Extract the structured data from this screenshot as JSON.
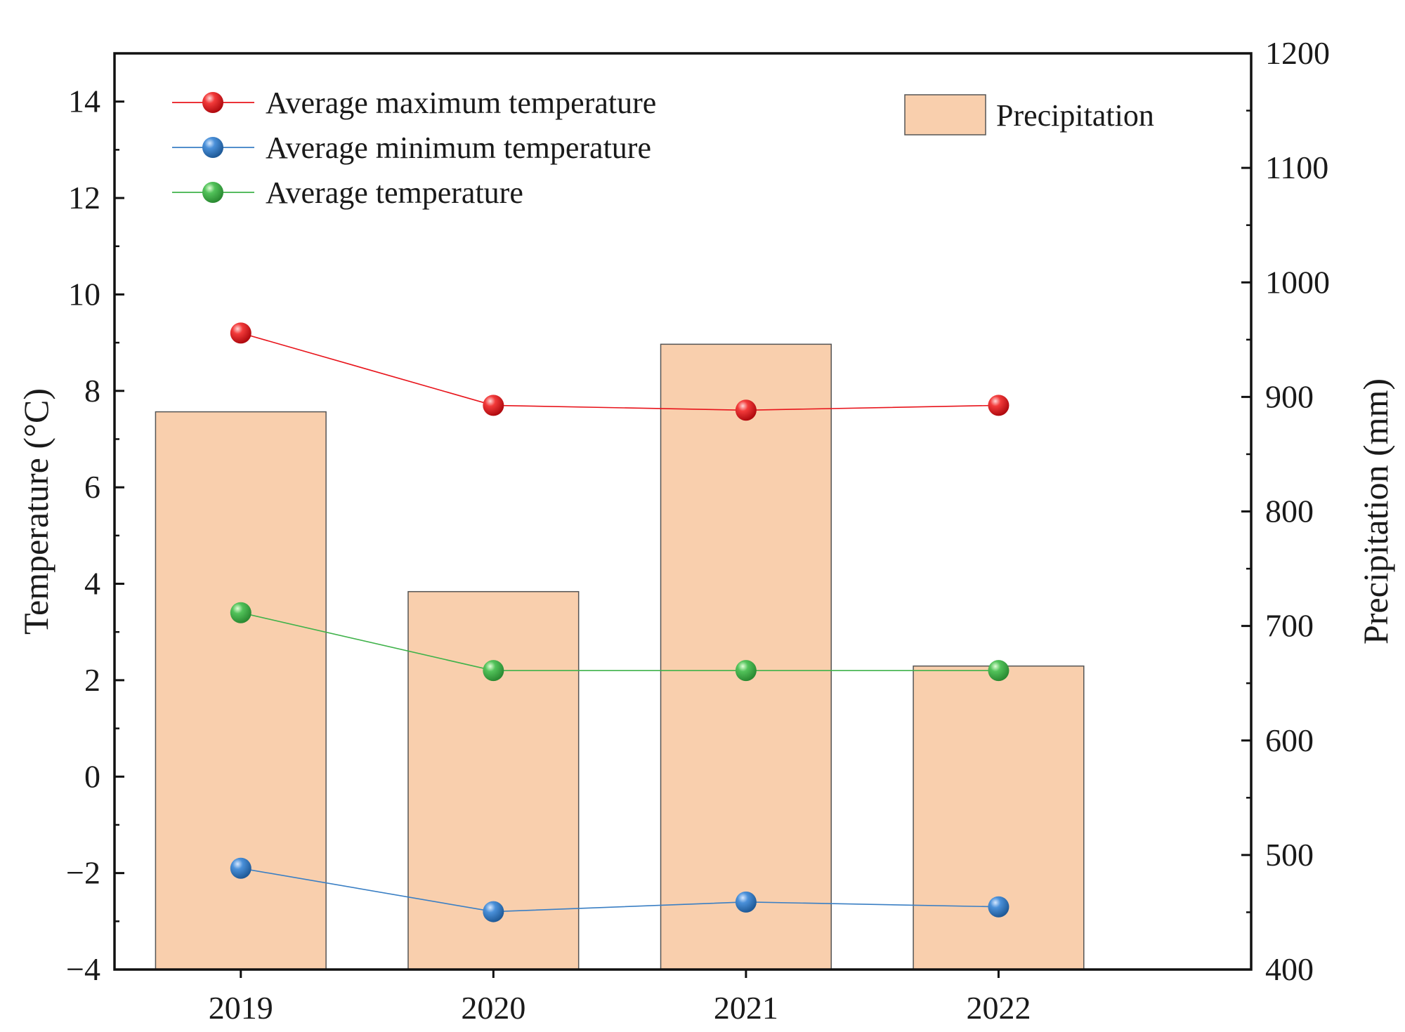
{
  "chart_data": {
    "type": "bar+line",
    "categories": [
      "2019",
      "2020",
      "2021",
      "2022"
    ],
    "bars": {
      "name": "Precipitation",
      "axis": "right",
      "values": [
        887,
        730,
        946,
        665
      ],
      "color": "#f9cfad"
    },
    "series": [
      {
        "name": "Average maximum temperature",
        "axis": "left",
        "values": [
          9.2,
          7.7,
          7.6,
          7.7
        ],
        "color": "#e8141b"
      },
      {
        "name": "Average minimum temperature",
        "axis": "left",
        "values": [
          -1.9,
          -2.8,
          -2.6,
          -2.7
        ],
        "color": "#3a7fc4"
      },
      {
        "name": "Average temperature",
        "axis": "left",
        "values": [
          3.4,
          2.2,
          2.2,
          2.2
        ],
        "color": "#3fb24a"
      }
    ],
    "y_left": {
      "label": "Temperature (°C)",
      "lim": [
        -4,
        15
      ],
      "ticks": [
        -4,
        -2,
        0,
        2,
        4,
        6,
        8,
        10,
        12,
        14
      ],
      "tick_labels": [
        "−4",
        "−2",
        "0",
        "2",
        "4",
        "6",
        "8",
        "10",
        "12",
        "14"
      ]
    },
    "y_right": {
      "label": "Precipitation (mm)",
      "lim": [
        400,
        1200
      ],
      "ticks": [
        400,
        500,
        600,
        700,
        800,
        900,
        1000,
        1100,
        1200
      ],
      "tick_labels": [
        "400",
        "500",
        "600",
        "700",
        "800",
        "900",
        "1000",
        "1100",
        "1200"
      ]
    },
    "legend": {
      "lines_position": "top-left",
      "bars_position": "top-right"
    }
  }
}
